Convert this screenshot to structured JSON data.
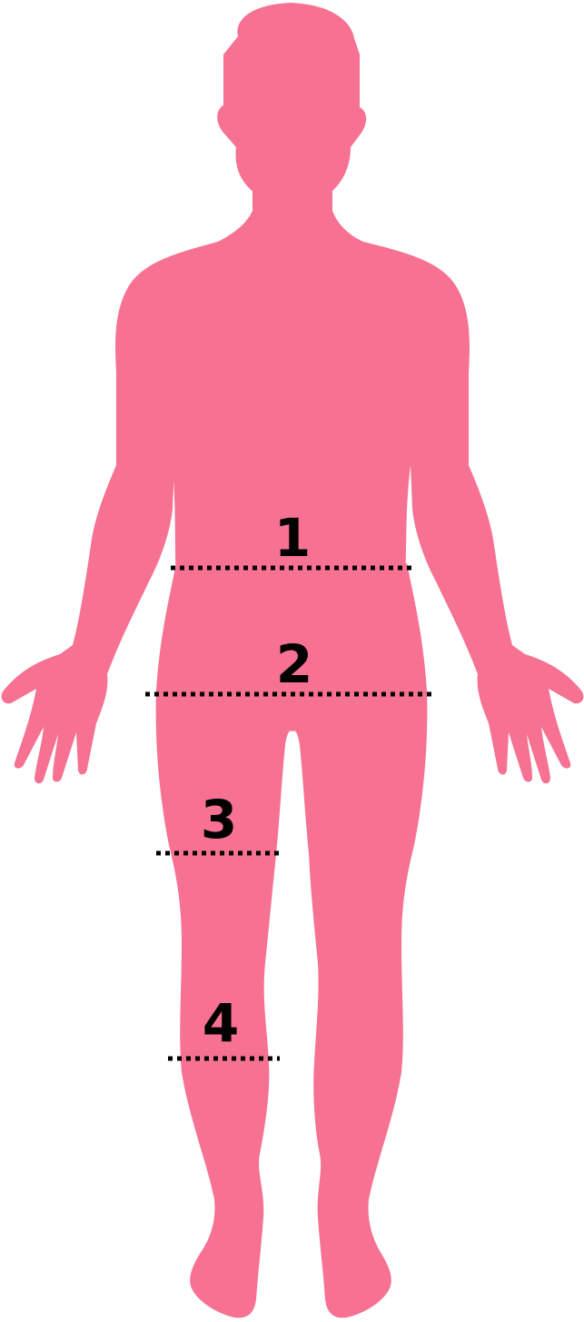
{
  "figure": {
    "silhouette_color": "#f67192",
    "line_color": "#000000",
    "label_color": "#000000"
  },
  "markers": [
    {
      "id": "1",
      "label": "1"
    },
    {
      "id": "2",
      "label": "2"
    },
    {
      "id": "3",
      "label": "3"
    },
    {
      "id": "4",
      "label": "4"
    }
  ]
}
